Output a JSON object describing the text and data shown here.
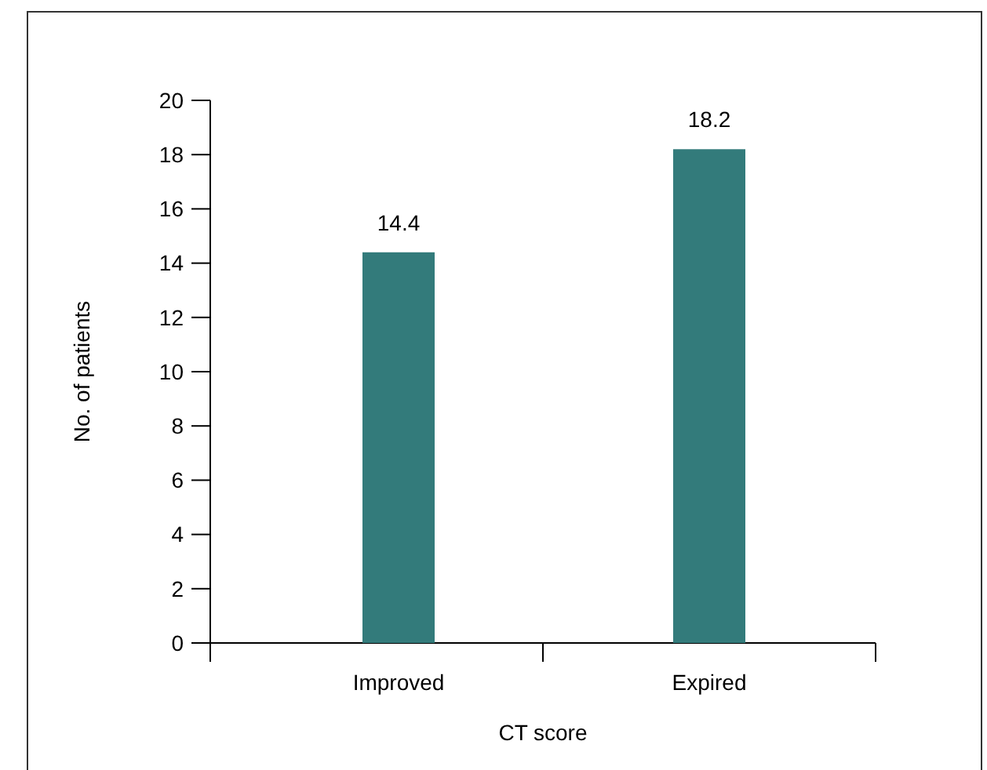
{
  "chart_data": {
    "type": "bar",
    "xlabel": "CT score",
    "ylabel": "No. of patients",
    "categories": [
      "Improved",
      "Expired"
    ],
    "values": [
      14.4,
      18.2
    ],
    "color": "#337b7b",
    "ylim": [
      0,
      20
    ],
    "yticks": [
      0,
      2,
      4,
      6,
      8,
      10,
      12,
      14,
      16,
      18,
      20
    ],
    "data_labels": true
  }
}
